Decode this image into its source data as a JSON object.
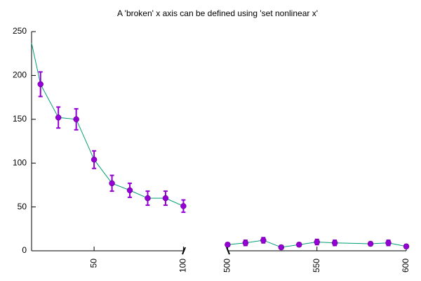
{
  "chart_data": {
    "type": "broken-axis-errorbar",
    "title": "A 'broken' x axis can be defined using 'set nonlinear x'",
    "xlim": [
      15,
      600
    ],
    "xbreak": [
      100,
      500
    ],
    "xticks": [
      50,
      100,
      500,
      550,
      600
    ],
    "ylim": [
      0,
      250
    ],
    "yticks": [
      0,
      50,
      100,
      150,
      200,
      250
    ],
    "points": {
      "color": "#9400d3",
      "x": [
        20,
        30,
        40,
        50,
        60,
        70,
        80,
        90,
        100,
        500,
        510,
        520,
        530,
        540,
        550,
        560,
        580,
        590,
        600
      ],
      "values": [
        190,
        152,
        150,
        104,
        77,
        69,
        60,
        60,
        51,
        7,
        9,
        12,
        4,
        7,
        10,
        9,
        8,
        9,
        5
      ],
      "errors": [
        14,
        12,
        12,
        10,
        9,
        8,
        8,
        8,
        7,
        2,
        3,
        3,
        2,
        2,
        3,
        3,
        2,
        3,
        2
      ]
    },
    "line": {
      "color": "#009e73",
      "x": [
        15,
        20,
        30,
        40,
        50,
        60,
        70,
        80,
        90,
        100,
        500,
        510,
        520,
        530,
        540,
        550,
        560,
        580,
        590,
        600
      ],
      "values": [
        237,
        190,
        152,
        150,
        104,
        77,
        69,
        60,
        60,
        51,
        7,
        9,
        12,
        4,
        7,
        10,
        9,
        8,
        9,
        5
      ]
    }
  }
}
